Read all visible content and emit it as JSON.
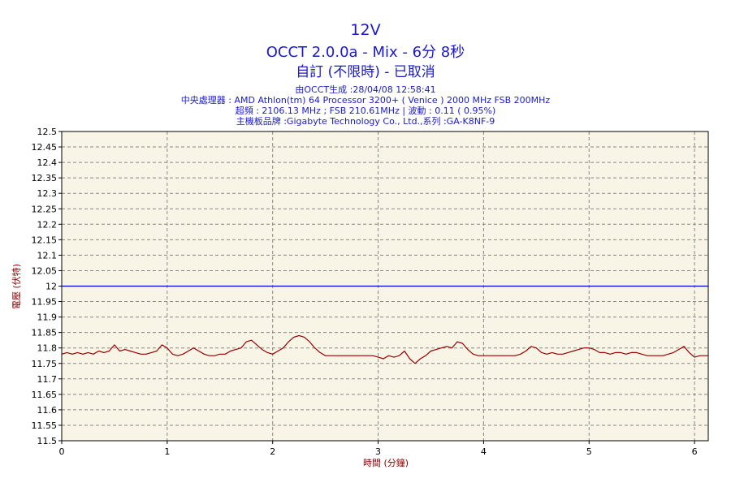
{
  "header": {
    "title": "12V",
    "subtitle": "OCCT 2.0.0a - Mix - 6分 8秒",
    "status": "自訂 (不限時) - 已取消",
    "info_lines": [
      "由OCCT生成 :28/04/08 12:58:41",
      "中央處理器 : AMD Athlon(tm) 64 Processor 3200+ ( Venice ) 2000 MHz FSB 200MHz",
      "超頻 : 2106.13 MHz ; FSB 210.61MHz | 波動 : 0.11 ( 0.95%)",
      "主機板品牌 :Gigabyte Technology Co., Ltd.,系列 :GA-K8NF-9"
    ]
  },
  "chart_data": {
    "type": "line",
    "title": "12V",
    "xlabel": "時間 (分鐘)",
    "ylabel": "電壓 (伏特)",
    "xlim": [
      0,
      6.13
    ],
    "ylim": [
      11.5,
      12.5
    ],
    "x_ticks": [
      "0",
      "1",
      "2",
      "3",
      "4",
      "5",
      "6"
    ],
    "y_ticks": [
      "11.5",
      "11.55",
      "11.6",
      "11.65",
      "11.7",
      "11.75",
      "11.8",
      "11.85",
      "11.9",
      "11.95",
      "12",
      "12.05",
      "12.1",
      "12.15",
      "12.2",
      "12.25",
      "12.3",
      "12.35",
      "12.4",
      "12.45",
      "12.5"
    ],
    "grid": true,
    "colors": {
      "plot_bg": "#f8f4e6",
      "reference_line": "#0000cc",
      "series_line": "#990000",
      "grid": "#888888"
    },
    "reference_line": {
      "y": 12.0
    },
    "series": [
      {
        "x": [
          0,
          0.05,
          0.1,
          0.15,
          0.2,
          0.25,
          0.3,
          0.35,
          0.4,
          0.45,
          0.5,
          0.55,
          0.6,
          0.65,
          0.7,
          0.75,
          0.8,
          0.85,
          0.9,
          0.95,
          1.0,
          1.05,
          1.1,
          1.15,
          1.2,
          1.25,
          1.3,
          1.35,
          1.4,
          1.45,
          1.5,
          1.55,
          1.6,
          1.65,
          1.7,
          1.75,
          1.8,
          1.85,
          1.9,
          1.95,
          2.0,
          2.05,
          2.1,
          2.15,
          2.2,
          2.25,
          2.3,
          2.35,
          2.4,
          2.45,
          2.5,
          2.55,
          2.6,
          2.65,
          2.7,
          2.75,
          2.8,
          2.85,
          2.9,
          2.95,
          3.0,
          3.05,
          3.1,
          3.15,
          3.2,
          3.25,
          3.3,
          3.35,
          3.4,
          3.45,
          3.5,
          3.55,
          3.6,
          3.65,
          3.7,
          3.75,
          3.8,
          3.85,
          3.9,
          3.95,
          4.0,
          4.05,
          4.1,
          4.15,
          4.2,
          4.25,
          4.3,
          4.35,
          4.4,
          4.45,
          4.5,
          4.55,
          4.6,
          4.65,
          4.7,
          4.75,
          4.8,
          4.85,
          4.9,
          4.95,
          5.0,
          5.05,
          5.1,
          5.15,
          5.2,
          5.25,
          5.3,
          5.35,
          5.4,
          5.45,
          5.5,
          5.55,
          5.6,
          5.65,
          5.7,
          5.75,
          5.8,
          5.85,
          5.9,
          5.95,
          6.0,
          6.05,
          6.13
        ],
        "values": [
          11.78,
          11.785,
          11.78,
          11.785,
          11.78,
          11.785,
          11.78,
          11.79,
          11.785,
          11.79,
          11.81,
          11.79,
          11.795,
          11.79,
          11.785,
          11.78,
          11.78,
          11.785,
          11.79,
          11.81,
          11.8,
          11.78,
          11.775,
          11.78,
          11.79,
          11.8,
          11.79,
          11.78,
          11.775,
          11.775,
          11.78,
          11.78,
          11.79,
          11.795,
          11.8,
          11.82,
          11.825,
          11.81,
          11.795,
          11.785,
          11.78,
          11.79,
          11.8,
          11.82,
          11.835,
          11.84,
          11.835,
          11.82,
          11.8,
          11.785,
          11.775,
          11.775,
          11.775,
          11.775,
          11.775,
          11.775,
          11.775,
          11.775,
          11.775,
          11.775,
          11.77,
          11.765,
          11.775,
          11.77,
          11.775,
          11.79,
          11.765,
          11.75,
          11.765,
          11.775,
          11.79,
          11.795,
          11.8,
          11.805,
          11.8,
          11.82,
          11.815,
          11.795,
          11.78,
          11.775,
          11.775,
          11.775,
          11.775,
          11.775,
          11.775,
          11.775,
          11.775,
          11.78,
          11.79,
          11.805,
          11.8,
          11.785,
          11.78,
          11.785,
          11.78,
          11.78,
          11.785,
          11.79,
          11.795,
          11.8,
          11.8,
          11.795,
          11.785,
          11.785,
          11.78,
          11.785,
          11.785,
          11.78,
          11.785,
          11.785,
          11.78,
          11.775,
          11.775,
          11.775,
          11.775,
          11.78,
          11.785,
          11.795,
          11.805,
          11.785,
          11.77,
          11.775,
          11.775
        ]
      }
    ]
  }
}
